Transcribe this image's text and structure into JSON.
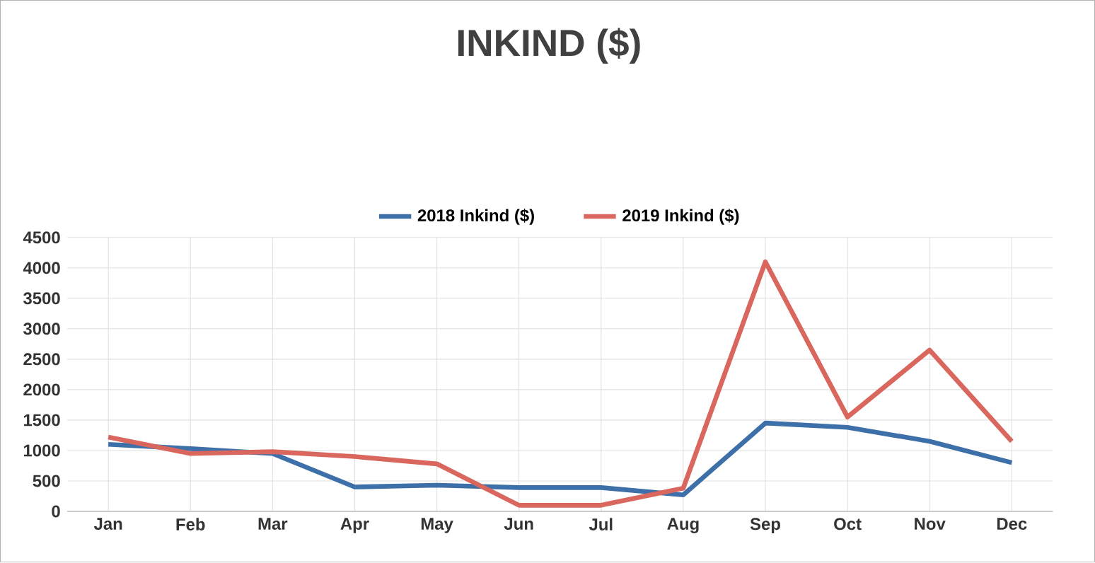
{
  "chart_data": {
    "type": "line",
    "title": "INKIND ($)",
    "categories": [
      "Jan",
      "Feb",
      "Mar",
      "Apr",
      "May",
      "Jun",
      "Jul",
      "Aug",
      "Sep",
      "Oct",
      "Nov",
      "Dec"
    ],
    "series": [
      {
        "name": "2018 Inkind ($)",
        "color": "#3d6fa8",
        "values": [
          1100,
          1030,
          950,
          400,
          430,
          390,
          390,
          270,
          1450,
          1380,
          1150,
          800
        ]
      },
      {
        "name": "2019 Inkind ($)",
        "color": "#d9675e",
        "values": [
          1220,
          950,
          980,
          900,
          780,
          100,
          100,
          380,
          4100,
          1550,
          2650,
          1150
        ]
      }
    ],
    "ylim": [
      0,
      4500
    ],
    "yticks": [
      0,
      500,
      1000,
      1500,
      2000,
      2500,
      3000,
      3500,
      4000,
      4500
    ],
    "grid": true,
    "legend": "top",
    "marker": "none",
    "line_style": "solid"
  }
}
